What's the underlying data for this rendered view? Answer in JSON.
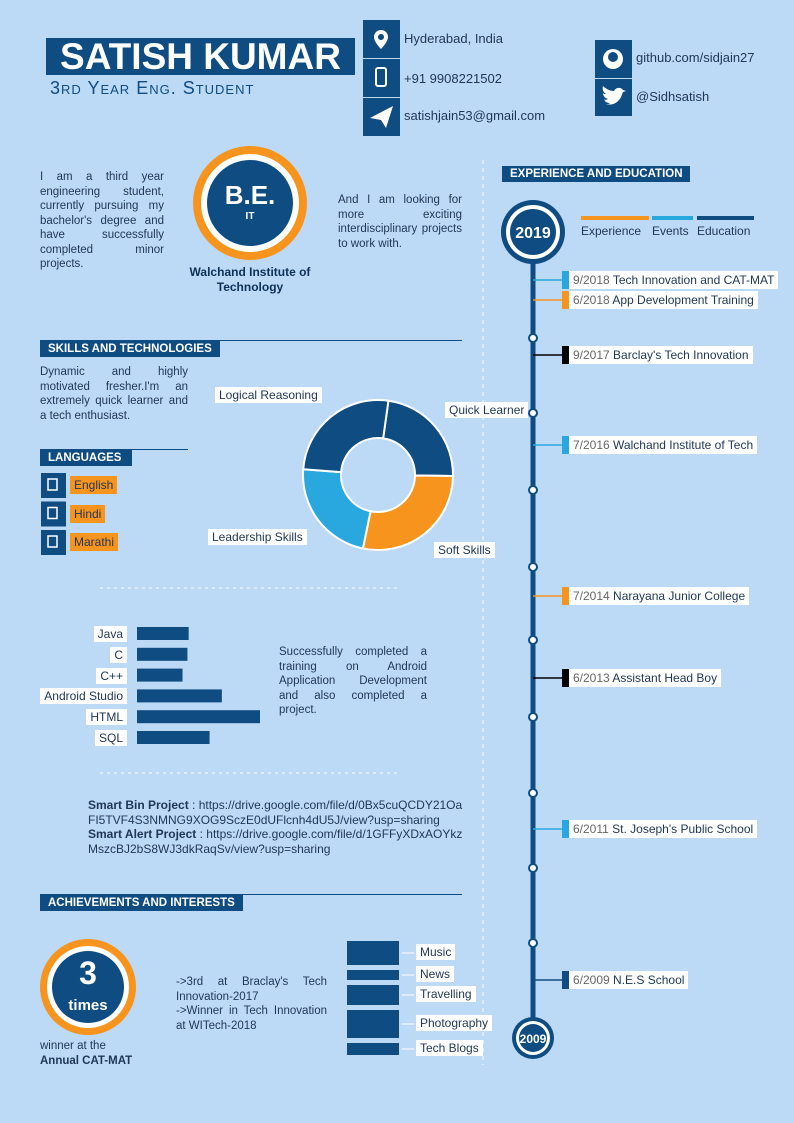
{
  "header": {
    "name": "SATISH KUMAR",
    "subtitle": "3rd Year Eng. Student"
  },
  "contact": {
    "location": "Hyderabad, India",
    "phone": "+91 9908221502",
    "email": "satishjain53@gmail.com",
    "github": "github.com/sidjain27",
    "twitter": "@Sidhsatish"
  },
  "intro": {
    "left": "I am a third year engineering student, currently pursuing my bachelor's degree and have successfully completed minor projects.",
    "degree": "B.E.",
    "branch": "IT",
    "college": "Walchand Institute of Technology",
    "right": "And I am looking for more exciting interdisciplinary projects to work with."
  },
  "skills": {
    "title": "SKILLS AND TECHNOLOGIES",
    "text": "Dynamic and highly motivated fresher.I'm an extremely quick learner and a tech enthusiast."
  },
  "languages": {
    "title": "LANGUAGES",
    "items": [
      "English",
      "Hindi",
      "Marathi"
    ]
  },
  "soft_skills": {
    "segments": [
      {
        "label": "Quick Learner",
        "value": 23,
        "color": "#0f4c81"
      },
      {
        "label": "Soft Skills",
        "value": 28,
        "color": "#f7941d"
      },
      {
        "label": "Leadership Skills",
        "value": 23,
        "color": "#29a8e0"
      },
      {
        "label": "Logical Reasoning",
        "value": 26,
        "color": "#0f4c81"
      }
    ]
  },
  "programming": {
    "color": "#0f4c81",
    "items": [
      {
        "label": "Java",
        "value": 42
      },
      {
        "label": "C",
        "value": 41
      },
      {
        "label": "C++",
        "value": 37
      },
      {
        "label": "Android Studio",
        "value": 69
      },
      {
        "label": "HTML",
        "value": 100
      },
      {
        "label": "SQL",
        "value": 59
      }
    ]
  },
  "training": "Successfully completed a training on Android Application Development and also completed a project.",
  "projects": [
    {
      "name": "Smart Bin Project",
      "link": ": https://drive.google.com/file/d/0Bx5cuQCDY21OaFI5TVF4S3NMNG9XOG9SczE0dUFlcnh4dU5J/view?usp=sharing"
    },
    {
      "name": "Smart Alert Project",
      "link": ": https://drive.google.com/file/d/1GFFyXDxAOYkzMszcBJ2bS8WJ3dkRaqSv/view?usp=sharing"
    }
  ],
  "achievements": {
    "title": "ACHIEVEMENTS AND INTERESTS",
    "count": 3,
    "count_unit": "times",
    "caption": "winner at the",
    "event": "Annual CAT-MAT",
    "text": [
      "->3rd at Braclay's Tech Innovation-2017",
      "->Winner in Tech Innovation at WITech-2018"
    ]
  },
  "interests": {
    "color": "#0f4c81",
    "items": [
      {
        "label": "Music",
        "value": 24
      },
      {
        "label": "News",
        "value": 10
      },
      {
        "label": "Travelling",
        "value": 20
      },
      {
        "label": "Photography",
        "value": 28
      },
      {
        "label": "Tech Blogs",
        "value": 12
      }
    ]
  },
  "timeline": {
    "title": "EXPERIENCE AND EDUCATION",
    "start": "2019",
    "end": "2009",
    "legend": [
      {
        "label": "Experience",
        "color": "#f7941d"
      },
      {
        "label": "Events",
        "color": "#29a8e0"
      },
      {
        "label": "Education",
        "color": "#0f4c81"
      }
    ],
    "entries": [
      {
        "date": "9/2018",
        "text": "Tech Innovation and CAT-MAT",
        "color": "#29a8e0"
      },
      {
        "date": "6/2018",
        "text": "App Development Training",
        "color": "#f7941d"
      },
      {
        "date": "9/2017",
        "text": "Barclay's Tech Innovation",
        "color": "#000000"
      },
      {
        "date": "7/2016",
        "text": "Walchand Institute of Tech",
        "color": "#29a8e0"
      },
      {
        "date": "7/2014",
        "text": "Narayana Junior College",
        "color": "#f7941d"
      },
      {
        "date": "6/2013",
        "text": "Assistant Head Boy",
        "color": "#000000"
      },
      {
        "date": "6/2011",
        "text": "St. Joseph's Public School",
        "color": "#29a8e0"
      },
      {
        "date": "6/2009",
        "text": "N.E.S School",
        "color": "#0f4c81"
      }
    ]
  }
}
